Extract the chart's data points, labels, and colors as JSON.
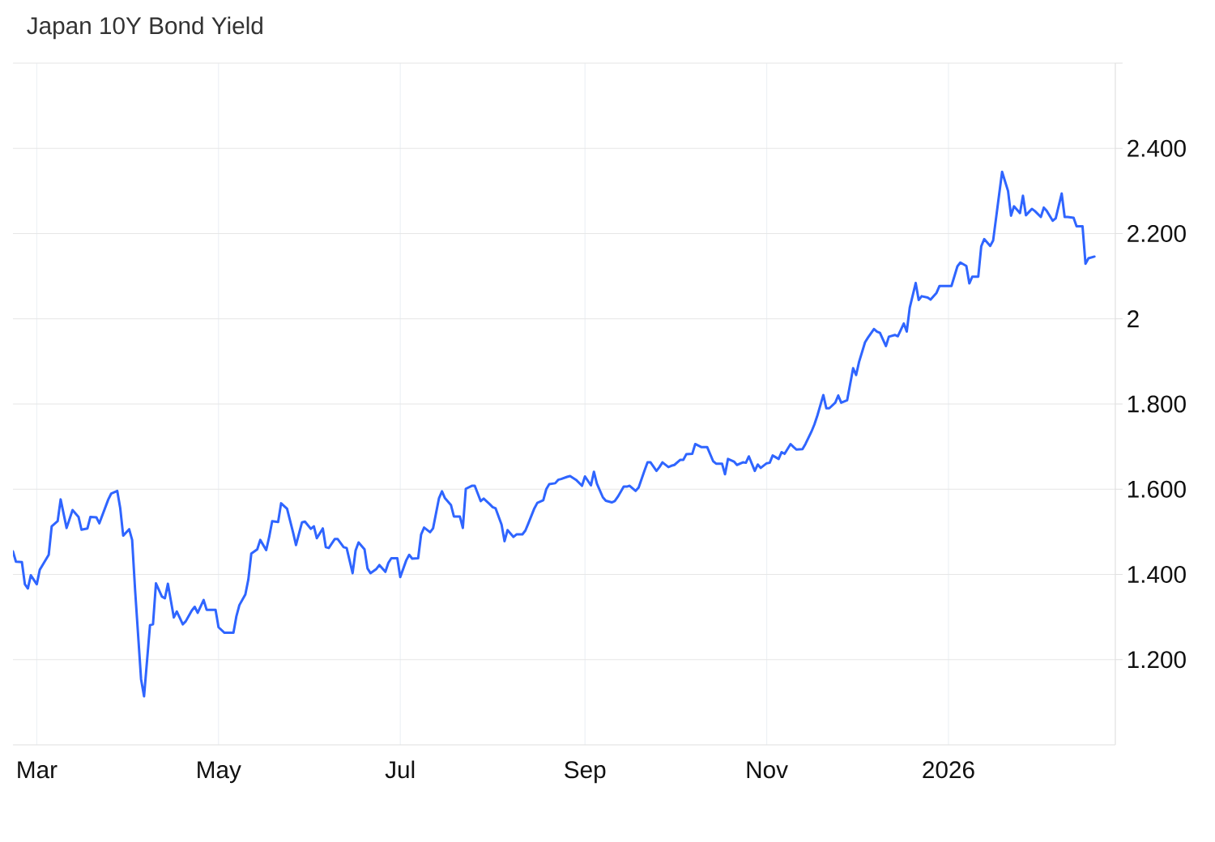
{
  "chart_data": {
    "type": "line",
    "title": "Japan 10Y Bond Yield",
    "color": "#2f65ff",
    "x": [
      "2025-02-21",
      "2025-02-22",
      "2025-02-24",
      "2025-02-25",
      "2025-02-26",
      "2025-02-27",
      "2025-03-01",
      "2025-03-02",
      "2025-03-05",
      "2025-03-06",
      "2025-03-08",
      "2025-03-09",
      "2025-03-11",
      "2025-03-13",
      "2025-03-15",
      "2025-03-16",
      "2025-03-18",
      "2025-03-19",
      "2025-03-21",
      "2025-03-22",
      "2025-03-25",
      "2025-03-26",
      "2025-03-28",
      "2025-03-29",
      "2025-03-30",
      "2025-04-01",
      "2025-04-02",
      "2025-04-03",
      "2025-04-05",
      "2025-04-06",
      "2025-04-08",
      "2025-04-09",
      "2025-04-10",
      "2025-04-12",
      "2025-04-13",
      "2025-04-14",
      "2025-04-16",
      "2025-04-17",
      "2025-04-19",
      "2025-04-20",
      "2025-04-22",
      "2025-04-23",
      "2025-04-24",
      "2025-04-26",
      "2025-04-27",
      "2025-04-30",
      "2025-05-01",
      "2025-05-03",
      "2025-05-06",
      "2025-05-07",
      "2025-05-08",
      "2025-05-10",
      "2025-05-11",
      "2025-05-12",
      "2025-05-14",
      "2025-05-15",
      "2025-05-17",
      "2025-05-18",
      "2025-05-19",
      "2025-05-21",
      "2025-05-22",
      "2025-05-24",
      "2025-05-26",
      "2025-05-27",
      "2025-05-29",
      "2025-05-30",
      "2025-06-01",
      "2025-06-02",
      "2025-06-03",
      "2025-06-05",
      "2025-06-06",
      "2025-06-07",
      "2025-06-09",
      "2025-06-10",
      "2025-06-12",
      "2025-06-13",
      "2025-06-15",
      "2025-06-16",
      "2025-06-17",
      "2025-06-19",
      "2025-06-20",
      "2025-06-21",
      "2025-06-23",
      "2025-06-24",
      "2025-06-26",
      "2025-06-27",
      "2025-06-28",
      "2025-06-30",
      "2025-07-01",
      "2025-07-03",
      "2025-07-04",
      "2025-07-05",
      "2025-07-07",
      "2025-07-08",
      "2025-07-09",
      "2025-07-11",
      "2025-07-12",
      "2025-07-14",
      "2025-07-15",
      "2025-07-16",
      "2025-07-18",
      "2025-07-19",
      "2025-07-21",
      "2025-07-22",
      "2025-07-23",
      "2025-07-25",
      "2025-07-26",
      "2025-07-28",
      "2025-07-29",
      "2025-07-31",
      "2025-08-01",
      "2025-08-02",
      "2025-08-04",
      "2025-08-05",
      "2025-08-06",
      "2025-08-08",
      "2025-08-09",
      "2025-08-11",
      "2025-08-12",
      "2025-08-13",
      "2025-08-15",
      "2025-08-16",
      "2025-08-18",
      "2025-08-19",
      "2025-08-20",
      "2025-08-22",
      "2025-08-23",
      "2025-08-24",
      "2025-08-26",
      "2025-08-27",
      "2025-08-29",
      "2025-08-31",
      "2025-09-01",
      "2025-09-03",
      "2025-09-04",
      "2025-09-05",
      "2025-09-07",
      "2025-09-08",
      "2025-09-10",
      "2025-09-11",
      "2025-09-12",
      "2025-09-14",
      "2025-09-15",
      "2025-09-16",
      "2025-09-18",
      "2025-09-19",
      "2025-09-21",
      "2025-09-22",
      "2025-09-23",
      "2025-09-25",
      "2025-09-26",
      "2025-09-27",
      "2025-09-29",
      "2025-09-30",
      "2025-10-01",
      "2025-10-03",
      "2025-10-04",
      "2025-10-05",
      "2025-10-07",
      "2025-10-08",
      "2025-10-10",
      "2025-10-11",
      "2025-10-12",
      "2025-10-14",
      "2025-10-15",
      "2025-10-17",
      "2025-10-18",
      "2025-10-19",
      "2025-10-21",
      "2025-10-22",
      "2025-10-24",
      "2025-10-25",
      "2025-10-26",
      "2025-10-28",
      "2025-10-29",
      "2025-10-30",
      "2025-11-01",
      "2025-11-02",
      "2025-11-03",
      "2025-11-05",
      "2025-11-06",
      "2025-11-07",
      "2025-11-09",
      "2025-11-10",
      "2025-11-11",
      "2025-11-13",
      "2025-11-14",
      "2025-11-16",
      "2025-11-17",
      "2025-11-18",
      "2025-11-20",
      "2025-11-21",
      "2025-11-22",
      "2025-11-24",
      "2025-11-25",
      "2025-11-26",
      "2025-11-28",
      "2025-11-30",
      "2025-12-01",
      "2025-12-02",
      "2025-12-04",
      "2025-12-05",
      "2025-12-07",
      "2025-12-08",
      "2025-12-09",
      "2025-12-11",
      "2025-12-12",
      "2025-12-14",
      "2025-12-15",
      "2025-12-17",
      "2025-12-18",
      "2025-12-19",
      "2025-12-21",
      "2025-12-22",
      "2025-12-23",
      "2025-12-25",
      "2025-12-26",
      "2025-12-28",
      "2025-12-29",
      "2026-01-02",
      "2026-01-04",
      "2026-01-05",
      "2026-01-07",
      "2026-01-08",
      "2026-01-09",
      "2026-01-11",
      "2026-01-12",
      "2026-01-13",
      "2026-01-15",
      "2026-01-16",
      "2026-01-19",
      "2026-01-21",
      "2026-01-22",
      "2026-01-23",
      "2026-01-25",
      "2026-01-26",
      "2026-01-27",
      "2026-01-29",
      "2026-01-30",
      "2026-02-01",
      "2026-02-02",
      "2026-02-03",
      "2026-02-05",
      "2026-02-06",
      "2026-02-08",
      "2026-02-09",
      "2026-02-10",
      "2026-02-12",
      "2026-02-13",
      "2026-02-15",
      "2026-02-16",
      "2026-02-17",
      "2026-02-19"
    ],
    "values": [
      1.454,
      1.43,
      1.429,
      1.377,
      1.367,
      1.398,
      1.377,
      1.411,
      1.446,
      1.513,
      1.525,
      1.576,
      1.509,
      1.551,
      1.535,
      1.505,
      1.508,
      1.535,
      1.534,
      1.52,
      1.576,
      1.59,
      1.596,
      1.556,
      1.491,
      1.506,
      1.481,
      1.363,
      1.154,
      1.114,
      1.281,
      1.283,
      1.379,
      1.348,
      1.344,
      1.378,
      1.299,
      1.313,
      1.283,
      1.29,
      1.315,
      1.324,
      1.31,
      1.34,
      1.317,
      1.317,
      1.276,
      1.263,
      1.263,
      1.302,
      1.328,
      1.353,
      1.388,
      1.449,
      1.459,
      1.481,
      1.457,
      1.488,
      1.525,
      1.523,
      1.567,
      1.554,
      1.499,
      1.469,
      1.522,
      1.524,
      1.507,
      1.513,
      1.485,
      1.508,
      1.464,
      1.462,
      1.483,
      1.483,
      1.464,
      1.462,
      1.403,
      1.456,
      1.475,
      1.459,
      1.414,
      1.403,
      1.413,
      1.422,
      1.406,
      1.427,
      1.438,
      1.438,
      1.394,
      1.433,
      1.446,
      1.437,
      1.438,
      1.494,
      1.51,
      1.499,
      1.508,
      1.579,
      1.595,
      1.579,
      1.563,
      1.536,
      1.536,
      1.509,
      1.601,
      1.608,
      1.608,
      1.572,
      1.578,
      1.565,
      1.558,
      1.555,
      1.517,
      1.478,
      1.504,
      1.488,
      1.494,
      1.494,
      1.503,
      1.52,
      1.555,
      1.568,
      1.574,
      1.6,
      1.612,
      1.614,
      1.622,
      1.624,
      1.629,
      1.631,
      1.622,
      1.608,
      1.63,
      1.609,
      1.641,
      1.613,
      1.581,
      1.573,
      1.569,
      1.572,
      1.582,
      1.606,
      1.606,
      1.608,
      1.596,
      1.604,
      1.644,
      1.663,
      1.663,
      1.643,
      1.652,
      1.663,
      1.652,
      1.655,
      1.657,
      1.669,
      1.669,
      1.682,
      1.683,
      1.706,
      1.699,
      1.699,
      1.699,
      1.666,
      1.66,
      1.66,
      1.635,
      1.671,
      1.665,
      1.657,
      1.663,
      1.662,
      1.677,
      1.643,
      1.658,
      1.65,
      1.661,
      1.662,
      1.679,
      1.671,
      1.687,
      1.683,
      1.706,
      1.699,
      1.693,
      1.694,
      1.706,
      1.735,
      1.752,
      1.773,
      1.821,
      1.79,
      1.79,
      1.803,
      1.82,
      1.803,
      1.809,
      1.884,
      1.868,
      1.899,
      1.945,
      1.956,
      1.976,
      1.97,
      1.967,
      1.936,
      1.958,
      1.962,
      1.959,
      1.989,
      1.97,
      2.026,
      2.084,
      2.044,
      2.053,
      2.05,
      2.045,
      2.061,
      2.077,
      2.077,
      2.123,
      2.132,
      2.124,
      2.083,
      2.099,
      2.099,
      2.17,
      2.187,
      2.171,
      2.184,
      2.345,
      2.3,
      2.242,
      2.264,
      2.248,
      2.289,
      2.243,
      2.258,
      2.253,
      2.239,
      2.261,
      2.253,
      2.23,
      2.236,
      2.294,
      2.239,
      2.239,
      2.237,
      2.217,
      2.217,
      2.129,
      2.142,
      2.146
    ],
    "xlim": [
      "2025-02-21",
      "2026-02-26"
    ],
    "xticks": [
      {
        "value": "2025-03-01",
        "label": "Mar"
      },
      {
        "value": "2025-05-01",
        "label": "May"
      },
      {
        "value": "2025-07-01",
        "label": "Jul"
      },
      {
        "value": "2025-09-01",
        "label": "Sep"
      },
      {
        "value": "2025-11-01",
        "label": "Nov"
      },
      {
        "value": "2026-01-01",
        "label": "2026"
      }
    ],
    "ylim": [
      1.0,
      2.6
    ],
    "yticks": [
      {
        "value": 1.2,
        "label": "1.200"
      },
      {
        "value": 1.4,
        "label": "1.400"
      },
      {
        "value": 1.6,
        "label": "1.600"
      },
      {
        "value": 1.8,
        "label": "1.800"
      },
      2,
      {
        "value": 2.2,
        "label": "2.200"
      },
      {
        "value": 2.4,
        "label": "2.400"
      },
      {
        "value": 2.6,
        "label": null
      }
    ],
    "grid": true
  }
}
